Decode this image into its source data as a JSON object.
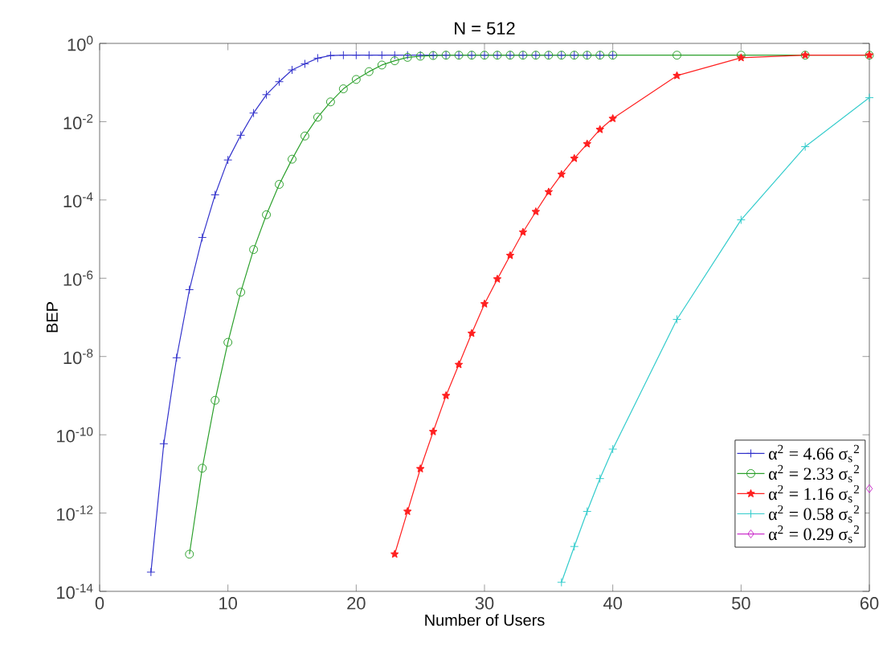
{
  "chart_data": {
    "type": "line",
    "title": "N = 512",
    "xlabel": "Number of Users",
    "ylabel": "BEP",
    "log": "y",
    "legend": "bottom right",
    "grid": false,
    "xlim": [
      0,
      60
    ],
    "xticks": [
      0,
      10,
      20,
      30,
      40,
      50,
      60
    ],
    "ylim": [
      1e-14,
      1
    ],
    "yticks": [
      {
        "value": 1e-14,
        "label": "10$^{-14}$"
      },
      {
        "value": 1e-12,
        "label": "10$^{-12}$"
      },
      {
        "value": 1e-10,
        "label": "10$^{-10}$"
      },
      {
        "value": 1e-08,
        "label": "10$^{-8}$"
      },
      {
        "value": 1e-06,
        "label": "10$^{-6}$"
      },
      {
        "value": 0.0001,
        "label": "10$^{-4}$"
      },
      {
        "value": 0.01,
        "label": "10$^{-2}$"
      },
      {
        "value": 1,
        "label": "10$^{0}$"
      }
    ],
    "series": [
      {
        "name": "α$^{2}$ = 4.66 σ$_{s}$$^{2}$",
        "color": "#3333cc",
        "marker": "cross",
        "x": [
          4,
          5,
          6,
          7,
          8,
          9,
          10,
          11,
          12,
          13,
          14,
          15,
          16,
          17,
          18,
          19,
          20,
          21,
          22,
          23,
          24,
          25,
          26,
          27,
          28,
          29,
          30,
          31,
          32,
          33,
          34,
          35,
          36,
          37,
          38,
          39,
          40
        ],
        "values": [
          3.1e-14,
          5.9e-11,
          9.3e-09,
          5.1e-07,
          1.1e-05,
          0.000135,
          0.00105,
          0.0045,
          0.0166,
          0.049,
          0.105,
          0.21,
          0.3,
          0.42,
          0.49,
          0.5,
          0.5,
          0.5,
          0.5,
          0.5,
          0.5,
          0.5,
          0.5,
          0.5,
          0.5,
          0.5,
          0.5,
          0.5,
          0.5,
          0.5,
          0.5,
          0.5,
          0.5,
          0.5,
          0.5,
          0.5,
          0.5
        ]
      },
      {
        "name": "α$^{2}$ = 2.33 σ$_{s}$$^{2}$",
        "color": "#2ca02c",
        "marker": "circle",
        "x": [
          7,
          8,
          9,
          10,
          11,
          12,
          13,
          14,
          15,
          16,
          17,
          18,
          19,
          20,
          21,
          22,
          23,
          24,
          25,
          26,
          27,
          28,
          29,
          30,
          31,
          32,
          33,
          34,
          35,
          36,
          37,
          38,
          39,
          40,
          45,
          50,
          55,
          60
        ],
        "values": [
          8.9e-14,
          1.4e-11,
          7.6e-10,
          2.3e-08,
          4.4e-07,
          5.4e-06,
          4.2e-05,
          0.00025,
          0.0011,
          0.0043,
          0.013,
          0.032,
          0.069,
          0.12,
          0.19,
          0.28,
          0.36,
          0.44,
          0.47,
          0.49,
          0.5,
          0.5,
          0.5,
          0.5,
          0.5,
          0.5,
          0.5,
          0.5,
          0.5,
          0.5,
          0.5,
          0.5,
          0.5,
          0.5,
          0.5,
          0.5,
          0.5,
          0.5
        ]
      },
      {
        "name": "α$^{2}$ = 1.16 σ$_{s}$$^{2}$",
        "color": "#ff2020",
        "marker": "star",
        "x": [
          23,
          24,
          25,
          26,
          27,
          28,
          29,
          30,
          31,
          32,
          33,
          34,
          35,
          36,
          37,
          38,
          39,
          40,
          45,
          50,
          55,
          60
        ],
        "values": [
          8.9e-14,
          1.1e-12,
          1.35e-11,
          1.2e-10,
          1e-09,
          6.2e-09,
          3.9e-08,
          2.2e-07,
          9.5e-07,
          3.8e-06,
          1.5e-05,
          5e-05,
          0.00016,
          0.00045,
          0.00115,
          0.0027,
          0.0063,
          0.012,
          0.15,
          0.43,
          0.5,
          0.5
        ]
      },
      {
        "name": "α$^{2}$ = 0.58 σ$_{s}$$^{2}$",
        "color": "#33cccc",
        "marker": "cross",
        "x": [
          36,
          37,
          38,
          39,
          40,
          45,
          50,
          55,
          60
        ],
        "values": [
          1.7e-14,
          1.4e-13,
          1.1e-12,
          7.6e-12,
          4.3e-11,
          8.9e-08,
          3.1e-05,
          0.0023,
          0.041
        ]
      },
      {
        "name": "α$^{2}$ = 0.29 σ$_{s}$$^{2}$",
        "color": "#cc33cc",
        "marker": "diamond",
        "x": [
          60
        ],
        "values": [
          4.2e-12
        ]
      }
    ]
  }
}
